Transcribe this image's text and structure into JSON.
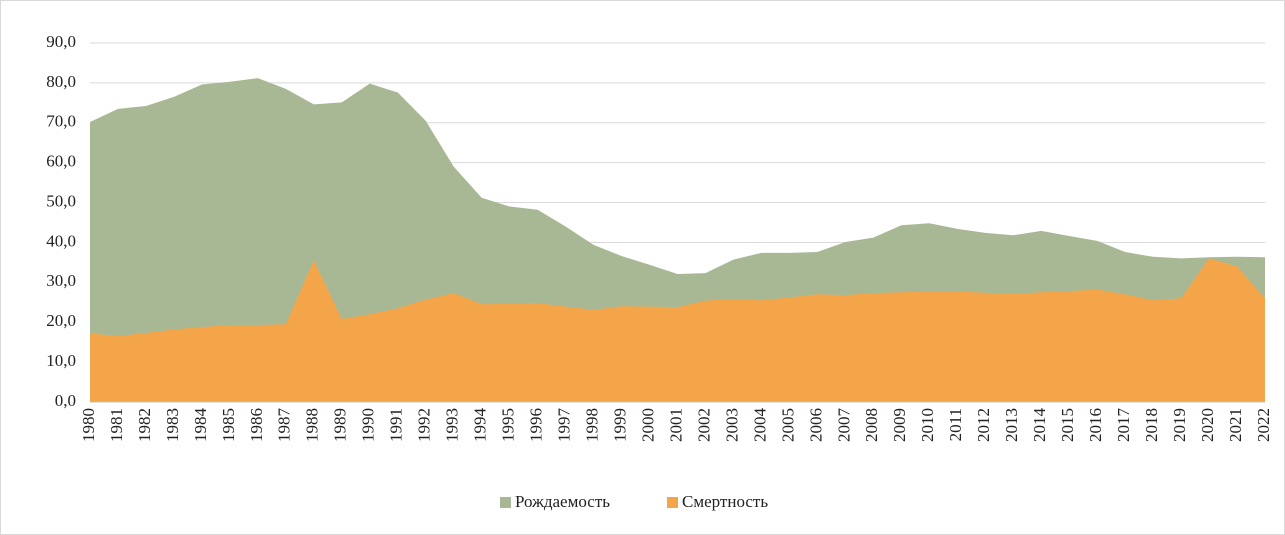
{
  "chart_data": {
    "type": "area",
    "categories": [
      "1980",
      "1981",
      "1982",
      "1983",
      "1984",
      "1985",
      "1986",
      "1987",
      "1988",
      "1989",
      "1990",
      "1991",
      "1992",
      "1993",
      "1994",
      "1995",
      "1996",
      "1997",
      "1998",
      "1999",
      "2000",
      "2001",
      "2002",
      "2003",
      "2004",
      "2005",
      "2006",
      "2007",
      "2008",
      "2009",
      "2010",
      "2011",
      "2012",
      "2013",
      "2014",
      "2015",
      "2016",
      "2017",
      "2018",
      "2019",
      "2020",
      "2021",
      "2022"
    ],
    "series": [
      {
        "name": "Рождаемость",
        "color": "#a9b894",
        "values": [
          70.2,
          73.5,
          74.2,
          76.5,
          79.6,
          80.3,
          81.2,
          78.5,
          74.6,
          75.1,
          79.8,
          77.6,
          70.5,
          59.0,
          51.2,
          49.0,
          48.2,
          44.0,
          39.4,
          36.6,
          34.4,
          32.1,
          32.3,
          35.7,
          37.4,
          37.4,
          37.6,
          40.1,
          41.2,
          44.3,
          44.8,
          43.4,
          42.4,
          41.8,
          42.9,
          41.6,
          40.4,
          37.6,
          36.4,
          36.0,
          36.3,
          36.4,
          36.3
        ]
      },
      {
        "name": "Смертность",
        "color": "#f4a54a",
        "values": [
          17.2,
          16.5,
          17.3,
          18.2,
          18.8,
          19.3,
          19.3,
          19.5,
          35.5,
          20.8,
          22.0,
          23.5,
          25.7,
          27.3,
          24.5,
          24.6,
          24.8,
          23.9,
          23.1,
          24.0,
          23.9,
          23.8,
          25.4,
          25.8,
          25.5,
          26.2,
          27.0,
          26.8,
          27.3,
          27.5,
          27.8,
          27.7,
          27.4,
          27.1,
          27.5,
          27.8,
          28.2,
          27.0,
          25.5,
          26.0,
          36.0,
          34.0,
          26.0
        ]
      }
    ],
    "ylim": [
      0,
      90
    ],
    "yticks": [
      {
        "value": 0,
        "label": "0,0"
      },
      {
        "value": 10,
        "label": "10,0"
      },
      {
        "value": 20,
        "label": "20,0"
      },
      {
        "value": 30,
        "label": "30,0"
      },
      {
        "value": 40,
        "label": "40,0"
      },
      {
        "value": 50,
        "label": "50,0"
      },
      {
        "value": 60,
        "label": "60,0"
      },
      {
        "value": 70,
        "label": "70,0"
      },
      {
        "value": 80,
        "label": "80,0"
      },
      {
        "value": 90,
        "label": "90,0"
      }
    ],
    "grid": true,
    "legend": "bottom"
  }
}
